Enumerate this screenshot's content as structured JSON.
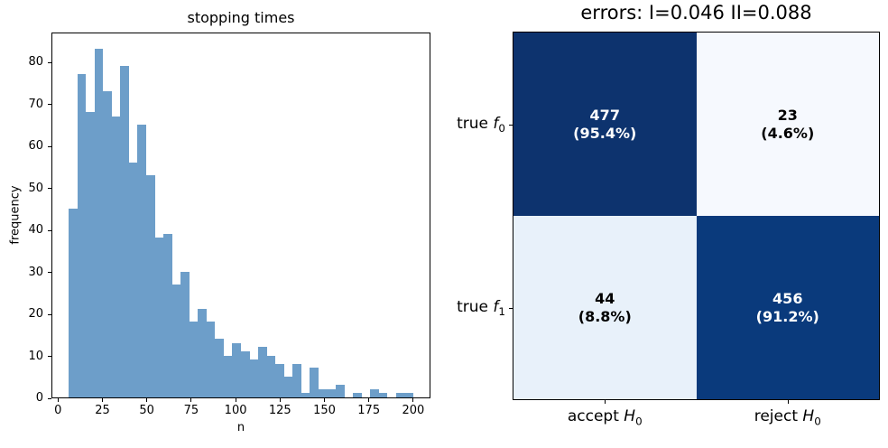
{
  "chart_data": [
    {
      "type": "histogram",
      "title": "stopping times",
      "xlabel": "n",
      "ylabel": "frequency",
      "bar_color": "#6d9ec9",
      "bin_start": 6,
      "bin_width": 4.85,
      "bin_end": 200,
      "values": [
        45,
        77,
        68,
        83,
        73,
        67,
        79,
        56,
        65,
        53,
        38,
        39,
        27,
        30,
        18,
        21,
        18,
        14,
        10,
        13,
        11,
        9,
        12,
        10,
        8,
        5,
        8,
        1,
        7,
        2,
        2,
        3,
        0,
        1,
        0,
        2,
        1,
        0,
        1,
        1
      ],
      "xticks": [
        0,
        25,
        50,
        75,
        100,
        125,
        150,
        175,
        200
      ],
      "yticks": [
        0,
        10,
        20,
        30,
        40,
        50,
        60,
        70,
        80
      ],
      "xlim": [
        -3.7,
        209.7
      ],
      "ylim": [
        0,
        87.15
      ],
      "grid": false,
      "legend": "none"
    },
    {
      "type": "heatmap",
      "title": "errors: I=0.046 II=0.088",
      "row_labels": [
        {
          "prefix": "true ",
          "symbol": "f",
          "sub": "0"
        },
        {
          "prefix": "true ",
          "symbol": "f",
          "sub": "1"
        }
      ],
      "col_labels": [
        {
          "prefix": "accept ",
          "symbol": "H",
          "sub": "0"
        },
        {
          "prefix": "reject ",
          "symbol": "H",
          "sub": "0"
        }
      ],
      "cells": [
        [
          {
            "count": "477",
            "pct": "(95.4%)",
            "bg": "#0d336e",
            "fg": "#ffffff"
          },
          {
            "count": "23",
            "pct": "(4.6%)",
            "bg": "#f6f9fe",
            "fg": "#000000"
          }
        ],
        [
          {
            "count": "44",
            "pct": "(8.8%)",
            "bg": "#e8f1fa",
            "fg": "#000000"
          },
          {
            "count": "456",
            "pct": "(91.2%)",
            "bg": "#0a3a7c",
            "fg": "#ffffff"
          }
        ]
      ]
    }
  ]
}
